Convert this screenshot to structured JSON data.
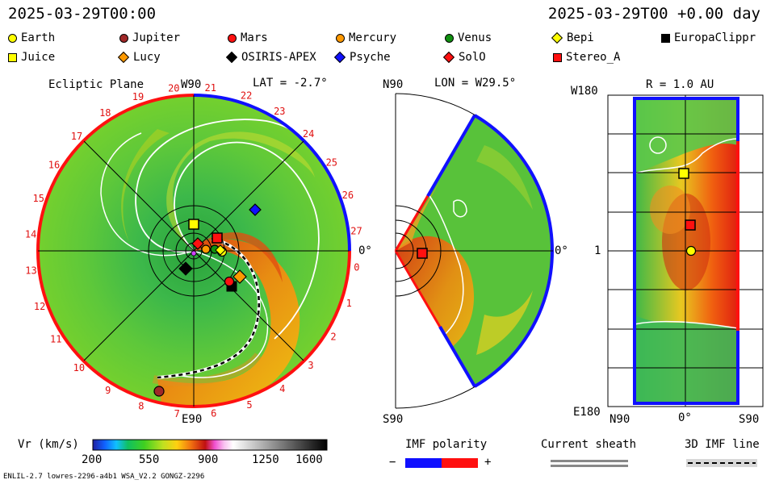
{
  "header": {
    "left_datetime": "2025-03-29T00:00",
    "right_datetime": "2025-03-29T00 +0.00 day"
  },
  "legend": [
    {
      "name": "Earth",
      "shape": "circle",
      "color": "#ffff00"
    },
    {
      "name": "Jupiter",
      "shape": "circle",
      "color": "#a02828"
    },
    {
      "name": "Mars",
      "shape": "circle",
      "color": "#ff1010"
    },
    {
      "name": "Mercury",
      "shape": "circle",
      "color": "#ff9900"
    },
    {
      "name": "Venus",
      "shape": "circle",
      "color": "#109010"
    },
    {
      "name": "Bepi",
      "shape": "diamond",
      "color": "#ffff00"
    },
    {
      "name": "EuropaClippr",
      "shape": "square",
      "color": "#000000"
    },
    {
      "name": "Juice",
      "shape": "square",
      "color": "#ffff00"
    },
    {
      "name": "Lucy",
      "shape": "diamond",
      "color": "#ff9900"
    },
    {
      "name": "OSIRIS-APEX",
      "shape": "diamond",
      "color": "#000000"
    },
    {
      "name": "Psyche",
      "shape": "diamond",
      "color": "#1010ff"
    },
    {
      "name": "SolO",
      "shape": "diamond",
      "color": "#ff1010"
    },
    {
      "name": "Stereo_A",
      "shape": "square",
      "color": "#ff1010"
    }
  ],
  "panels": {
    "ecliptic": {
      "title": "Ecliptic Plane",
      "top_label": "W90",
      "bottom_label": "E90",
      "right_label": "0°",
      "lat_label": "LAT = -2.7°",
      "carrington_ticks": [
        "20",
        "21",
        "22",
        "23",
        "24",
        "25",
        "26",
        "27",
        "0",
        "1",
        "2",
        "3",
        "4",
        "5",
        "6",
        "7",
        "8",
        "9",
        "10",
        "11",
        "12",
        "13",
        "14",
        "15",
        "16",
        "17",
        "18",
        "19"
      ]
    },
    "meridional": {
      "top_label": "N90",
      "bottom_label": "S90",
      "right_label": "0°",
      "lon_label": "LON = W29.5°"
    },
    "radial": {
      "top_left": "W180",
      "bottom_left": "E180",
      "mid_left": "1",
      "title": "R = 1.0 AU",
      "bottom_labels": [
        "N90",
        "0°",
        "S90"
      ]
    }
  },
  "colorbar": {
    "label": "Vr (km/s)",
    "ticks": [
      "200",
      "550",
      "900",
      "1250",
      "1600"
    ],
    "min": 200,
    "max": 1600
  },
  "bottom_legend": {
    "imf_polarity": "IMF polarity",
    "minus": "−",
    "plus": "+",
    "current_sheath": "Current sheath",
    "imf_line": "3D IMF line"
  },
  "footer": {
    "model_info": "ENLIL-2.7 lowres-2296-a4b1 WSA_V2.2 GONGZ-2296"
  },
  "chart_data": {
    "type": "heatmap",
    "variable": "Vr (km/s)",
    "range": [
      200,
      1600
    ],
    "ecliptic_lat_deg": -2.7,
    "meridional_lon": "W29.5",
    "radial_cut_au": 1.0
  }
}
